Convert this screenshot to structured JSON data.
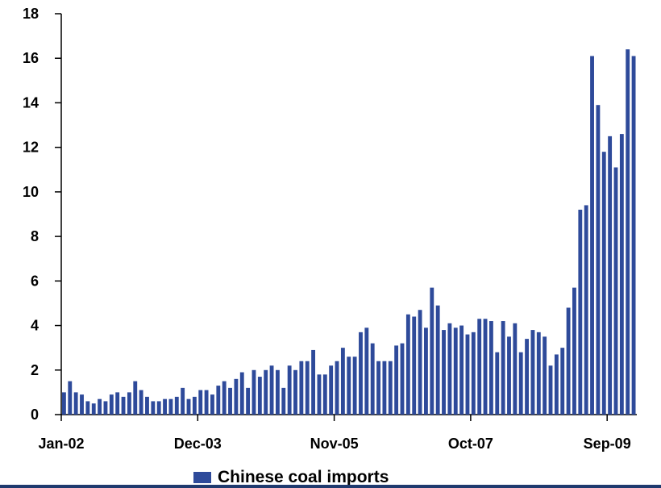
{
  "colors": {
    "bar": "#2e4a9a",
    "axis": "#000000",
    "rule": "#1f3a6e"
  },
  "legend": {
    "label": "Chinese coal imports"
  },
  "chart_data": {
    "type": "bar",
    "title": "",
    "xlabel": "",
    "ylabel": "",
    "ylim": [
      0,
      18
    ],
    "yticks": [
      0,
      2,
      4,
      6,
      8,
      10,
      12,
      14,
      16,
      18
    ],
    "grid": false,
    "legend_position": "bottom",
    "x_tick_labels": [
      {
        "label": "Jan-02",
        "index": 0
      },
      {
        "label": "Dec-03",
        "index": 23
      },
      {
        "label": "Nov-05",
        "index": 46
      },
      {
        "label": "Oct-07",
        "index": 69
      },
      {
        "label": "Sep-09",
        "index": 92
      }
    ],
    "series": [
      {
        "name": "Chinese coal imports",
        "values": [
          1.0,
          1.5,
          1.0,
          0.9,
          0.6,
          0.5,
          0.7,
          0.6,
          0.9,
          1.0,
          0.8,
          1.0,
          1.5,
          1.1,
          0.8,
          0.6,
          0.6,
          0.7,
          0.7,
          0.8,
          1.2,
          0.7,
          0.8,
          1.1,
          1.1,
          0.9,
          1.3,
          1.5,
          1.2,
          1.6,
          1.9,
          1.2,
          2.0,
          1.7,
          2.0,
          2.2,
          2.0,
          1.2,
          2.2,
          2.0,
          2.4,
          2.4,
          2.9,
          1.8,
          1.8,
          2.2,
          2.4,
          3.0,
          2.6,
          2.6,
          3.7,
          3.9,
          3.2,
          2.4,
          2.4,
          2.4,
          3.1,
          3.2,
          4.5,
          4.4,
          4.7,
          3.9,
          5.7,
          4.9,
          3.8,
          4.1,
          3.9,
          4.0,
          3.6,
          3.7,
          4.3,
          4.3,
          4.2,
          2.8,
          4.2,
          3.5,
          4.1,
          2.8,
          3.4,
          3.8,
          3.7,
          3.5,
          2.2,
          2.7,
          3.0,
          4.8,
          5.7,
          9.2,
          9.4,
          16.1,
          13.9,
          11.8,
          12.5,
          11.1,
          12.6,
          16.4,
          16.1
        ]
      }
    ]
  }
}
